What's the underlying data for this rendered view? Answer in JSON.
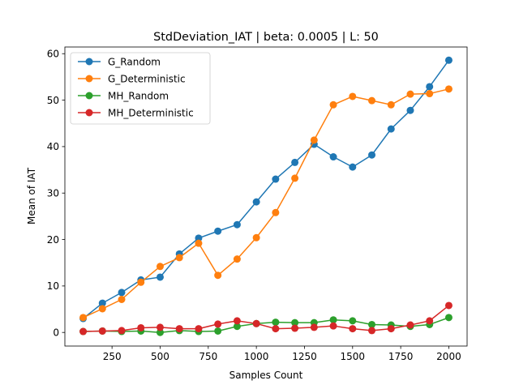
{
  "chart_data": {
    "type": "line",
    "title": "StdDeviation_IAT  | beta: 0.0005 | L: 50",
    "xlabel": "Samples Count",
    "ylabel": "Mean of IAT",
    "xlim": [
      5,
      2095
    ],
    "ylim": [
      -2.93,
      61.44
    ],
    "xticks": [
      250,
      500,
      750,
      1000,
      1250,
      1500,
      1750,
      2000
    ],
    "xtick_labels": [
      "250",
      "500",
      "750",
      "1000",
      "1250",
      "1500",
      "1750",
      "2000"
    ],
    "yticks": [
      0,
      10,
      20,
      30,
      40,
      50,
      60
    ],
    "ytick_labels": [
      "0",
      "10",
      "20",
      "30",
      "40",
      "50",
      "60"
    ],
    "grid": false,
    "legend_position": "top-left",
    "x": [
      100,
      200,
      300,
      400,
      500,
      600,
      700,
      800,
      900,
      1000,
      1100,
      1200,
      1300,
      1400,
      1500,
      1600,
      1700,
      1800,
      1900,
      2000
    ],
    "series": [
      {
        "name": "G_Random",
        "color": "#1f77b4",
        "values": [
          3.0,
          6.3,
          8.6,
          11.3,
          11.9,
          16.9,
          20.3,
          21.8,
          23.2,
          28.1,
          33.0,
          36.6,
          40.5,
          37.8,
          35.6,
          38.2,
          43.8,
          47.8,
          52.9,
          58.6
        ]
      },
      {
        "name": "G_Deterministic",
        "color": "#ff7f0e",
        "values": [
          3.2,
          5.1,
          7.1,
          10.8,
          14.2,
          16.1,
          19.2,
          12.3,
          15.8,
          20.4,
          25.8,
          33.2,
          41.4,
          49.0,
          50.8,
          49.9,
          49.0,
          51.3,
          51.4,
          52.4
        ]
      },
      {
        "name": "MH_Random",
        "color": "#2ca02c",
        "values": [
          0.2,
          0.3,
          0.2,
          0.3,
          0.0,
          0.4,
          0.2,
          0.3,
          1.3,
          1.9,
          2.2,
          2.1,
          2.1,
          2.7,
          2.5,
          1.7,
          1.6,
          1.3,
          1.7,
          3.2
        ]
      },
      {
        "name": "MH_Deterministic",
        "color": "#d62728",
        "values": [
          0.2,
          0.3,
          0.4,
          1.0,
          1.1,
          0.8,
          0.8,
          1.8,
          2.5,
          1.9,
          0.8,
          0.9,
          1.1,
          1.4,
          0.8,
          0.4,
          0.8,
          1.6,
          2.5,
          5.8
        ]
      }
    ]
  }
}
